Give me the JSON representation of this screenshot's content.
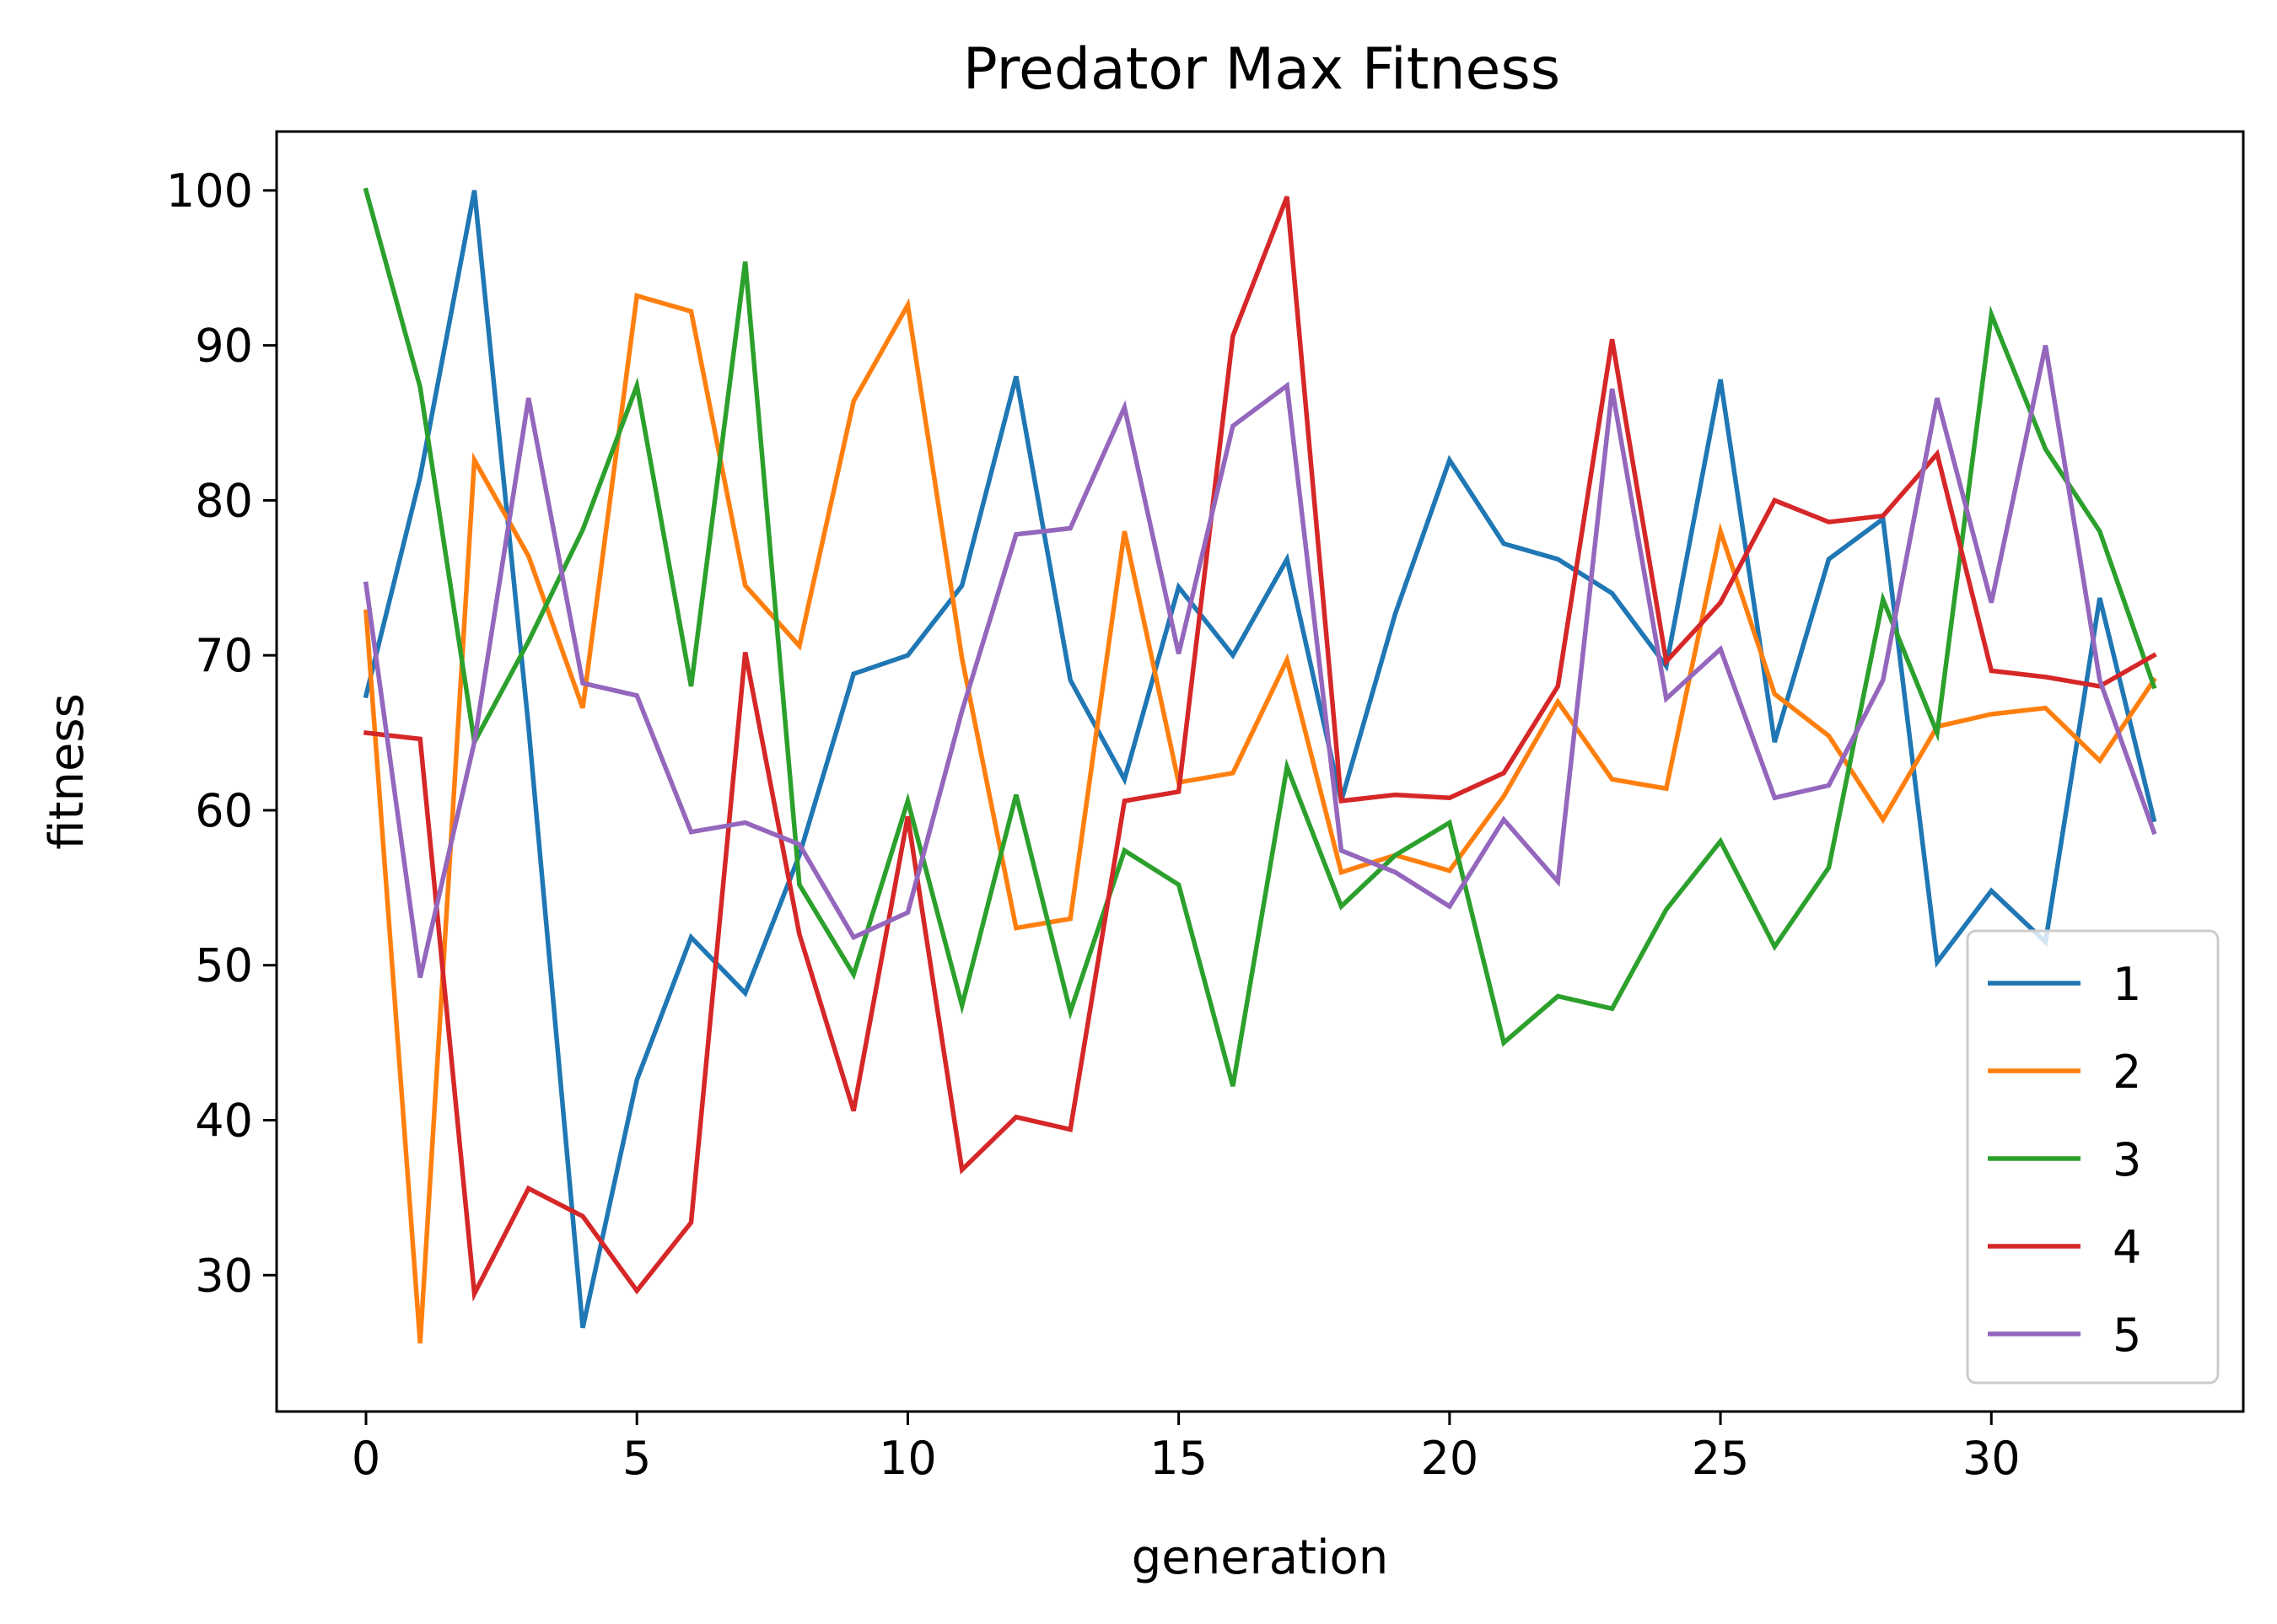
{
  "chart_data": {
    "type": "line",
    "title": "Predator Max Fitness",
    "xlabel": "generation",
    "ylabel": "fitness",
    "xlim": [
      -1.65,
      34.65
    ],
    "ylim": [
      21.2,
      103.8
    ],
    "xticks": [
      0,
      5,
      10,
      15,
      20,
      25,
      30
    ],
    "yticks": [
      30,
      40,
      50,
      60,
      70,
      80,
      90,
      100
    ],
    "grid": false,
    "legend_position": "lower-right",
    "x": [
      0,
      1,
      2,
      3,
      4,
      5,
      6,
      7,
      8,
      9,
      10,
      11,
      12,
      13,
      14,
      15,
      16,
      17,
      18,
      19,
      20,
      21,
      22,
      23,
      24,
      25,
      26,
      27,
      28,
      29,
      30,
      31,
      32,
      33
    ],
    "series": [
      {
        "name": "1",
        "color": "#1f77b4",
        "values": [
          67.4,
          81.5,
          100.0,
          65.4,
          26.6,
          42.6,
          51.8,
          48.2,
          57.1,
          68.8,
          70.0,
          74.5,
          88.0,
          68.4,
          62.0,
          74.4,
          70.0,
          76.2,
          60.6,
          72.7,
          82.6,
          77.2,
          76.2,
          74.0,
          69.3,
          87.8,
          64.4,
          76.2,
          78.8,
          50.2,
          54.8,
          51.5,
          73.7,
          59.4
        ]
      },
      {
        "name": "2",
        "color": "#ff7f0e",
        "values": [
          72.8,
          25.6,
          82.6,
          76.4,
          66.6,
          93.2,
          92.2,
          74.5,
          70.6,
          86.4,
          92.6,
          69.8,
          52.4,
          53.0,
          78.0,
          61.8,
          62.4,
          69.7,
          56.0,
          57.1,
          56.1,
          60.9,
          67.0,
          62.0,
          61.4,
          78.0,
          67.5,
          64.8,
          59.4,
          65.4,
          66.2,
          66.6,
          63.2,
          68.4
        ]
      },
      {
        "name": "3",
        "color": "#2ca02c",
        "values": [
          100.0,
          87.3,
          64.4,
          70.9,
          78.1,
          87.4,
          68.0,
          95.4,
          55.2,
          49.4,
          60.6,
          47.4,
          61.0,
          47.0,
          57.4,
          55.2,
          42.2,
          62.8,
          53.8,
          57.1,
          59.2,
          45.0,
          48.0,
          47.2,
          53.6,
          58.0,
          51.2,
          56.3,
          73.6,
          65.0,
          92.0,
          83.3,
          78.0,
          68.0
        ]
      },
      {
        "name": "4",
        "color": "#d62728",
        "values": [
          65.0,
          64.6,
          28.8,
          35.6,
          33.8,
          29.0,
          33.4,
          70.2,
          52.0,
          40.6,
          59.6,
          36.8,
          40.2,
          39.4,
          60.6,
          61.2,
          90.6,
          99.6,
          60.6,
          61.0,
          60.8,
          62.4,
          68.0,
          90.4,
          69.6,
          73.4,
          80.0,
          78.6,
          79.0,
          83.0,
          69.0,
          68.6,
          68.0,
          70.0
        ]
      },
      {
        "name": "5",
        "color": "#9467bd",
        "values": [
          74.6,
          49.2,
          64.4,
          86.6,
          68.2,
          67.4,
          58.6,
          59.2,
          57.8,
          51.8,
          53.4,
          66.4,
          77.8,
          78.2,
          86.0,
          70.1,
          84.8,
          87.4,
          57.4,
          56.0,
          53.8,
          59.4,
          55.4,
          87.2,
          67.2,
          70.4,
          60.8,
          61.6,
          68.4,
          86.6,
          73.4,
          90.0,
          68.4,
          58.6
        ]
      }
    ]
  }
}
